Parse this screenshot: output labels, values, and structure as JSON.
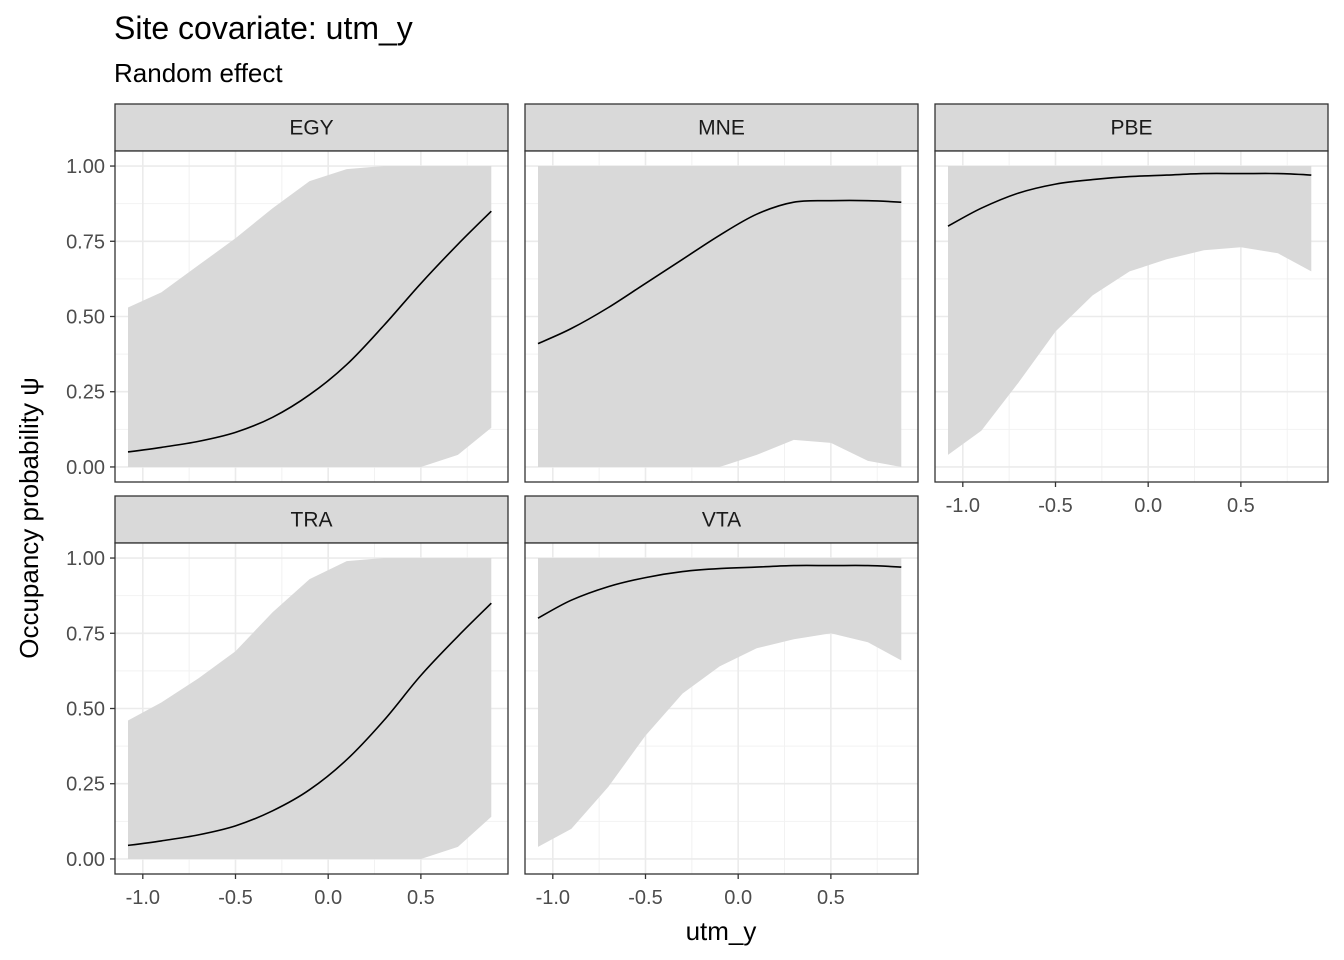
{
  "title": "Site covariate: utm_y",
  "subtitle": "Random effect",
  "chart_data": {
    "type": "line",
    "layout": "facet_wrap",
    "xlabel": "utm_y",
    "ylabel": "Occupancy probability  ψ",
    "xlim": [
      -1.15,
      0.97
    ],
    "ylim": [
      -0.05,
      1.05
    ],
    "xticks": [
      -1.0,
      -0.5,
      0.0,
      0.5
    ],
    "xtick_labels": [
      "-1.0",
      "-0.5",
      "0.0",
      "0.5"
    ],
    "yticks": [
      0,
      0.25,
      0.5,
      0.75,
      1.0
    ],
    "ytick_labels": [
      "0.00",
      "0.25",
      "0.50",
      "0.75",
      "1.00"
    ],
    "grid": true,
    "band_color": "#d9d9d9",
    "line_color": "#000000",
    "facets": [
      {
        "name": "EGY",
        "x": [
          -1.08,
          -0.9,
          -0.7,
          -0.5,
          -0.3,
          -0.1,
          0.1,
          0.3,
          0.5,
          0.7,
          0.88
        ],
        "y": [
          0.05,
          0.065,
          0.085,
          0.115,
          0.165,
          0.24,
          0.34,
          0.47,
          0.61,
          0.74,
          0.85
        ],
        "lower": [
          0,
          0,
          0,
          0,
          0,
          0,
          0,
          0,
          0,
          0.04,
          0.13
        ],
        "upper": [
          0.53,
          0.58,
          0.67,
          0.76,
          0.86,
          0.95,
          0.99,
          1.0,
          1.0,
          1.0,
          1.0
        ]
      },
      {
        "name": "MNE",
        "x": [
          -1.08,
          -0.9,
          -0.7,
          -0.5,
          -0.3,
          -0.1,
          0.1,
          0.3,
          0.5,
          0.7,
          0.88
        ],
        "y": [
          0.41,
          0.46,
          0.53,
          0.61,
          0.69,
          0.77,
          0.84,
          0.88,
          0.885,
          0.885,
          0.88
        ],
        "lower": [
          0,
          0,
          0,
          0,
          0,
          0,
          0.04,
          0.09,
          0.08,
          0.02,
          0
        ],
        "upper": [
          1.0,
          1.0,
          1.0,
          1.0,
          1.0,
          1.0,
          1.0,
          1.0,
          1.0,
          1.0,
          1.0
        ]
      },
      {
        "name": "PBE",
        "x": [
          -1.08,
          -0.9,
          -0.7,
          -0.5,
          -0.3,
          -0.1,
          0.1,
          0.3,
          0.5,
          0.7,
          0.88
        ],
        "y": [
          0.8,
          0.86,
          0.91,
          0.94,
          0.955,
          0.965,
          0.97,
          0.975,
          0.975,
          0.975,
          0.97
        ],
        "lower": [
          0.04,
          0.12,
          0.28,
          0.45,
          0.57,
          0.65,
          0.69,
          0.72,
          0.73,
          0.71,
          0.65
        ],
        "upper": [
          1.0,
          1.0,
          1.0,
          1.0,
          1.0,
          1.0,
          1.0,
          1.0,
          1.0,
          1.0,
          1.0
        ]
      },
      {
        "name": "TRA",
        "x": [
          -1.08,
          -0.9,
          -0.7,
          -0.5,
          -0.3,
          -0.1,
          0.1,
          0.3,
          0.5,
          0.7,
          0.88
        ],
        "y": [
          0.045,
          0.06,
          0.08,
          0.11,
          0.16,
          0.23,
          0.33,
          0.46,
          0.61,
          0.74,
          0.85
        ],
        "lower": [
          0,
          0,
          0,
          0,
          0,
          0,
          0,
          0,
          0,
          0.04,
          0.14
        ],
        "upper": [
          0.46,
          0.52,
          0.6,
          0.69,
          0.82,
          0.93,
          0.99,
          1.0,
          1.0,
          1.0,
          1.0
        ]
      },
      {
        "name": "VTA",
        "x": [
          -1.08,
          -0.9,
          -0.7,
          -0.5,
          -0.3,
          -0.1,
          0.1,
          0.3,
          0.5,
          0.7,
          0.88
        ],
        "y": [
          0.8,
          0.86,
          0.905,
          0.935,
          0.955,
          0.965,
          0.97,
          0.975,
          0.975,
          0.975,
          0.97
        ],
        "lower": [
          0.04,
          0.1,
          0.24,
          0.41,
          0.55,
          0.64,
          0.7,
          0.73,
          0.75,
          0.72,
          0.66
        ],
        "upper": [
          1.0,
          1.0,
          1.0,
          1.0,
          1.0,
          1.0,
          1.0,
          1.0,
          1.0,
          1.0,
          1.0
        ]
      }
    ]
  }
}
